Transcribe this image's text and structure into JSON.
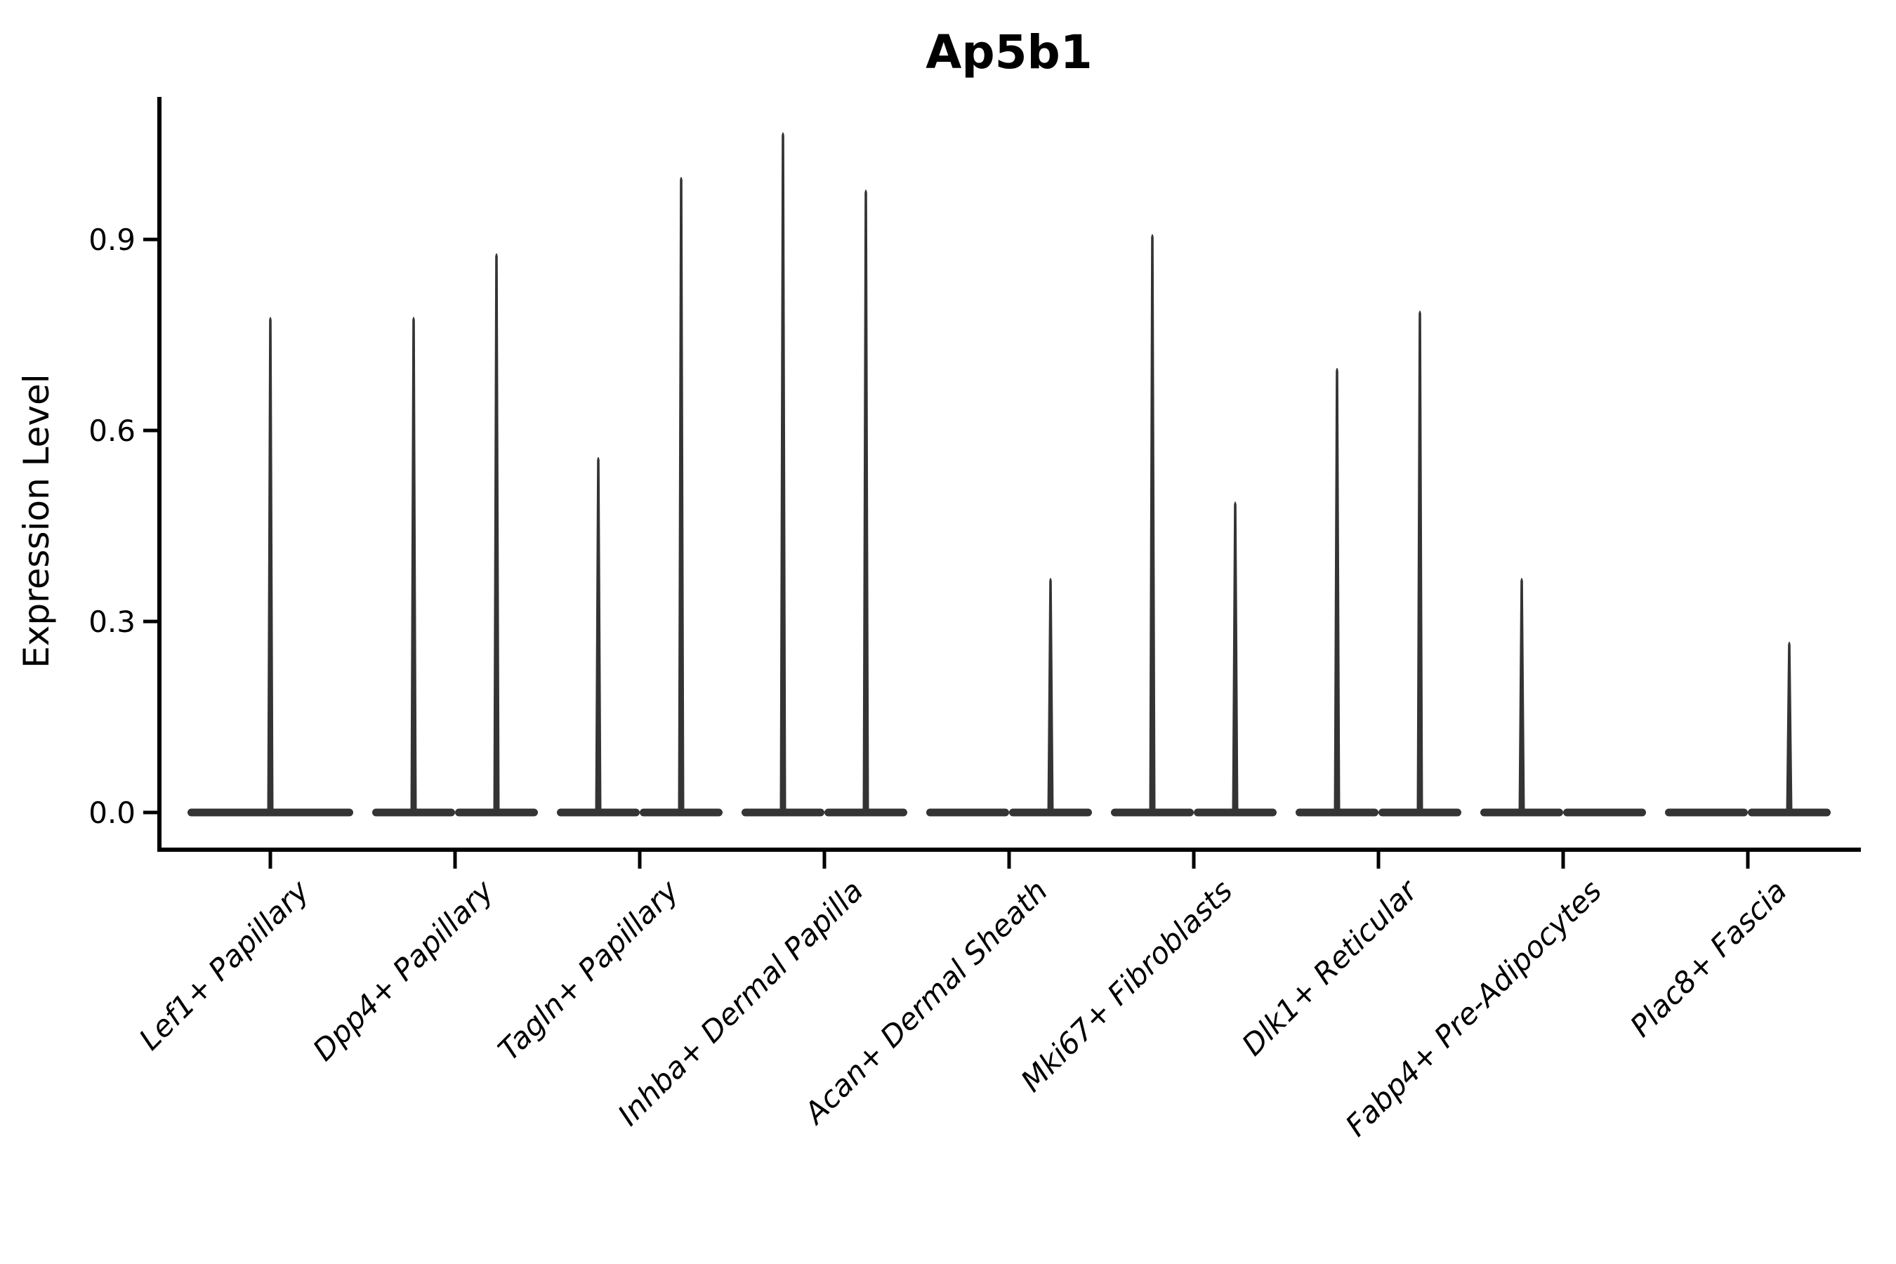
{
  "figure": {
    "background": "#ffffff"
  },
  "chart_data": {
    "type": "violin",
    "title": "Ap5b1",
    "xlabel": "",
    "ylabel": "Expression Level",
    "y_ticks": [
      "0.0",
      "0.3",
      "0.6",
      "0.9"
    ],
    "y_tick_values": [
      0.0,
      0.3,
      0.6,
      0.9
    ],
    "ylim": [
      -0.06,
      1.12
    ],
    "grid": false,
    "legend": "none",
    "categories": [
      "Lef1+ Papillary",
      "Dpp4+ Papillary",
      "Tagln+ Papillary",
      "Inhba+ Dermal Papilla",
      "Acan+ Dermal Sheath",
      "Mki67+ Fibroblasts",
      "Dlk1+ Reticular",
      "Fabp4+ Pre-Adipocytes",
      "Plac8+ Fascia"
    ],
    "violins": [
      {
        "category": "Lef1+ Papillary",
        "groups": [
          {
            "position": "center",
            "peak": 0.78
          }
        ]
      },
      {
        "category": "Dpp4+ Papillary",
        "groups": [
          {
            "position": "left",
            "peak": 0.78
          },
          {
            "position": "right",
            "peak": 0.88
          }
        ]
      },
      {
        "category": "Tagln+ Papillary",
        "groups": [
          {
            "position": "left",
            "peak": 0.56
          },
          {
            "position": "right",
            "peak": 1.0
          }
        ]
      },
      {
        "category": "Inhba+ Dermal Papilla",
        "groups": [
          {
            "position": "left",
            "peak": 1.07
          },
          {
            "position": "right",
            "peak": 0.98
          }
        ]
      },
      {
        "category": "Acan+ Dermal Sheath",
        "groups": [
          {
            "position": "left",
            "peak": 0.0
          },
          {
            "position": "right",
            "peak": 0.37
          }
        ]
      },
      {
        "category": "Mki67+ Fibroblasts",
        "groups": [
          {
            "position": "left",
            "peak": 0.91
          },
          {
            "position": "right",
            "peak": 0.49
          }
        ]
      },
      {
        "category": "Dlk1+ Reticular",
        "groups": [
          {
            "position": "left",
            "peak": 0.7
          },
          {
            "position": "right",
            "peak": 0.79
          }
        ]
      },
      {
        "category": "Fabp4+ Pre-Adipocytes",
        "groups": [
          {
            "position": "left",
            "peak": 0.37
          },
          {
            "position": "right",
            "peak": 0.0
          }
        ]
      },
      {
        "category": "Plac8+ Fascia",
        "groups": [
          {
            "position": "left",
            "peak": 0.0
          },
          {
            "position": "right",
            "peak": 0.27
          }
        ]
      }
    ],
    "style": {
      "violin_color": "#343434",
      "axis_color": "#000000",
      "density_shape": "flat base at 0 with thin spike up to the peak value"
    }
  }
}
